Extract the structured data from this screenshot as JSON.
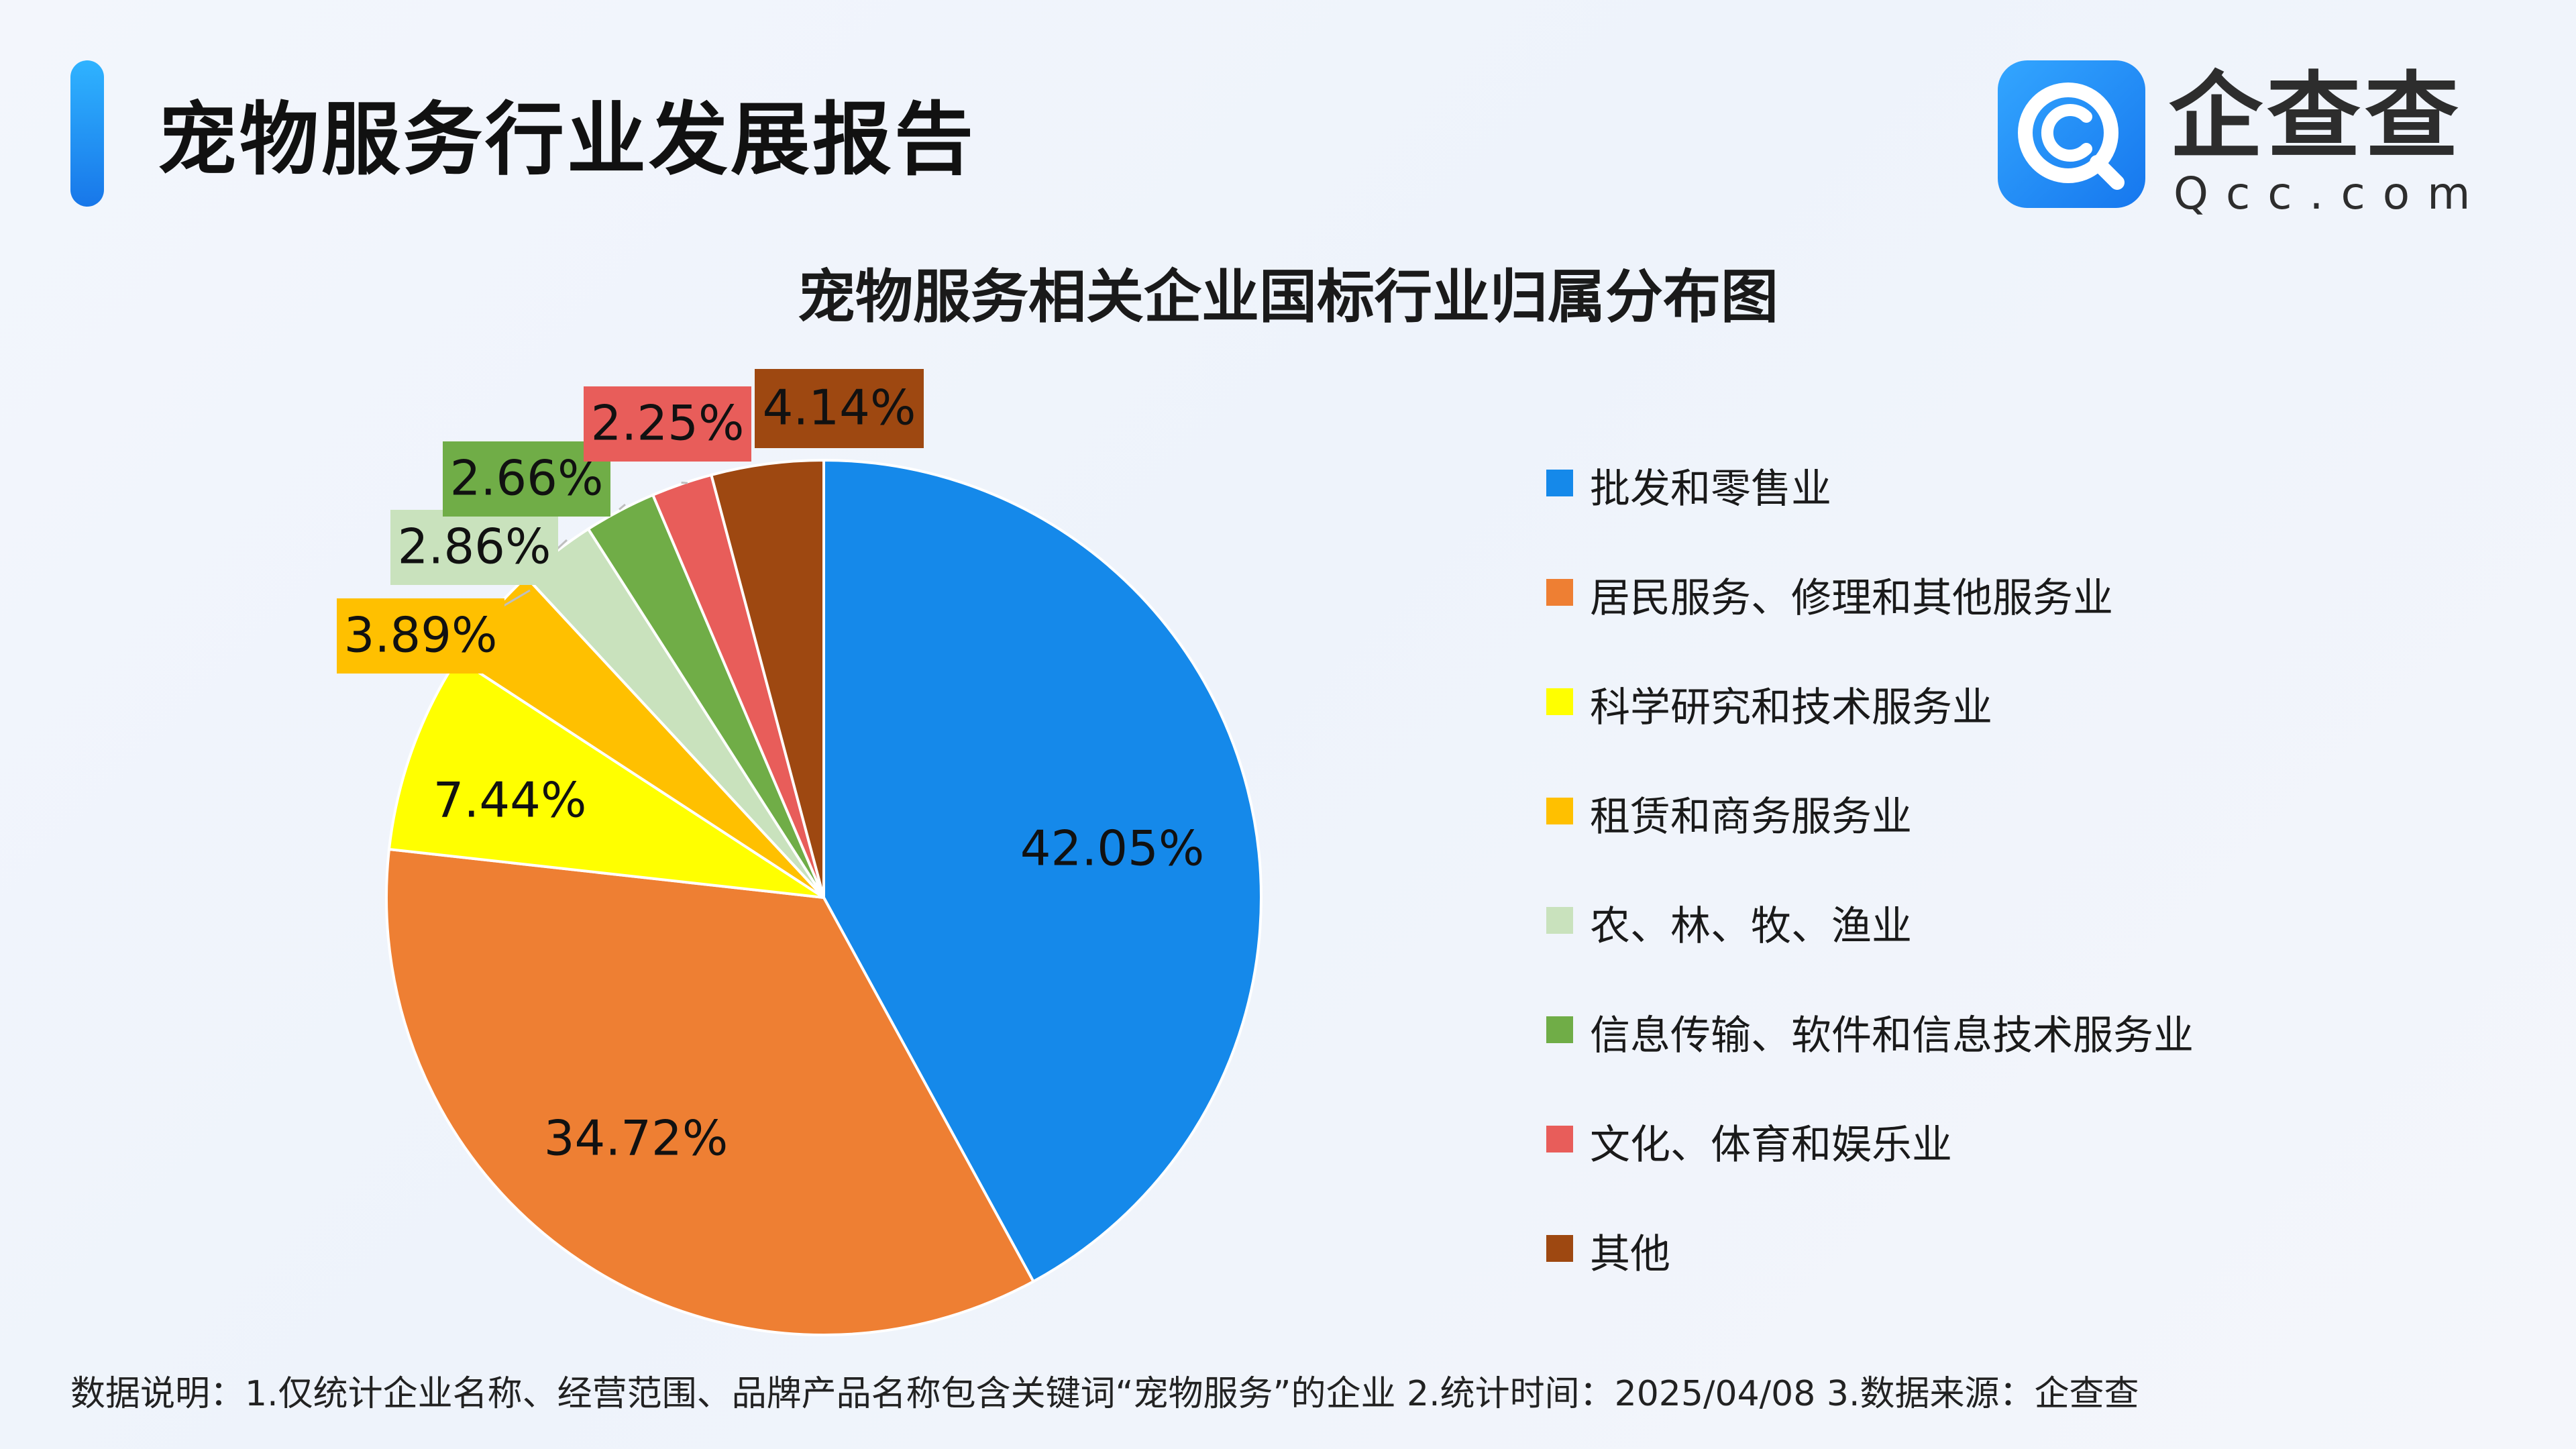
{
  "header": {
    "title": "宠物服务行业发展报告",
    "logo": {
      "name": "企查查",
      "domain": "Qcc.com",
      "icon": "qcc-q-logo-icon"
    }
  },
  "colors": {
    "accent": "#1a86ec",
    "slices": [
      "#1589ea",
      "#ee7f33",
      "#ffff00",
      "#ffc000",
      "#c9e2bd",
      "#70ad47",
      "#e85d5a",
      "#9e4811"
    ]
  },
  "chart_data": {
    "type": "pie",
    "title": "宠物服务相关企业国标行业归属分布图",
    "legend_position": "right",
    "slices": [
      {
        "name": "批发和零售业",
        "value": 42.05,
        "label": "42.05%"
      },
      {
        "name": "居民服务、修理和其他服务业",
        "value": 34.72,
        "label": "34.72%"
      },
      {
        "name": "科学研究和技术服务业",
        "value": 7.44,
        "label": "7.44%"
      },
      {
        "name": "租赁和商务服务业",
        "value": 3.89,
        "label": "3.89%"
      },
      {
        "name": "农、林、牧、渔业",
        "value": 2.86,
        "label": "2.86%"
      },
      {
        "name": "信息传输、软件和信息技术服务业",
        "value": 2.66,
        "label": "2.66%"
      },
      {
        "name": "文化、体育和娱乐业",
        "value": 2.25,
        "label": "2.25%"
      },
      {
        "name": "其他",
        "value": 4.14,
        "label": "4.14%"
      }
    ]
  },
  "footnote": "数据说明：1.仅统计企业名称、经营范围、品牌产品名称包含关键词“宠物服务”的企业   2.统计时间：2025/04/08    3.数据来源：企查查"
}
